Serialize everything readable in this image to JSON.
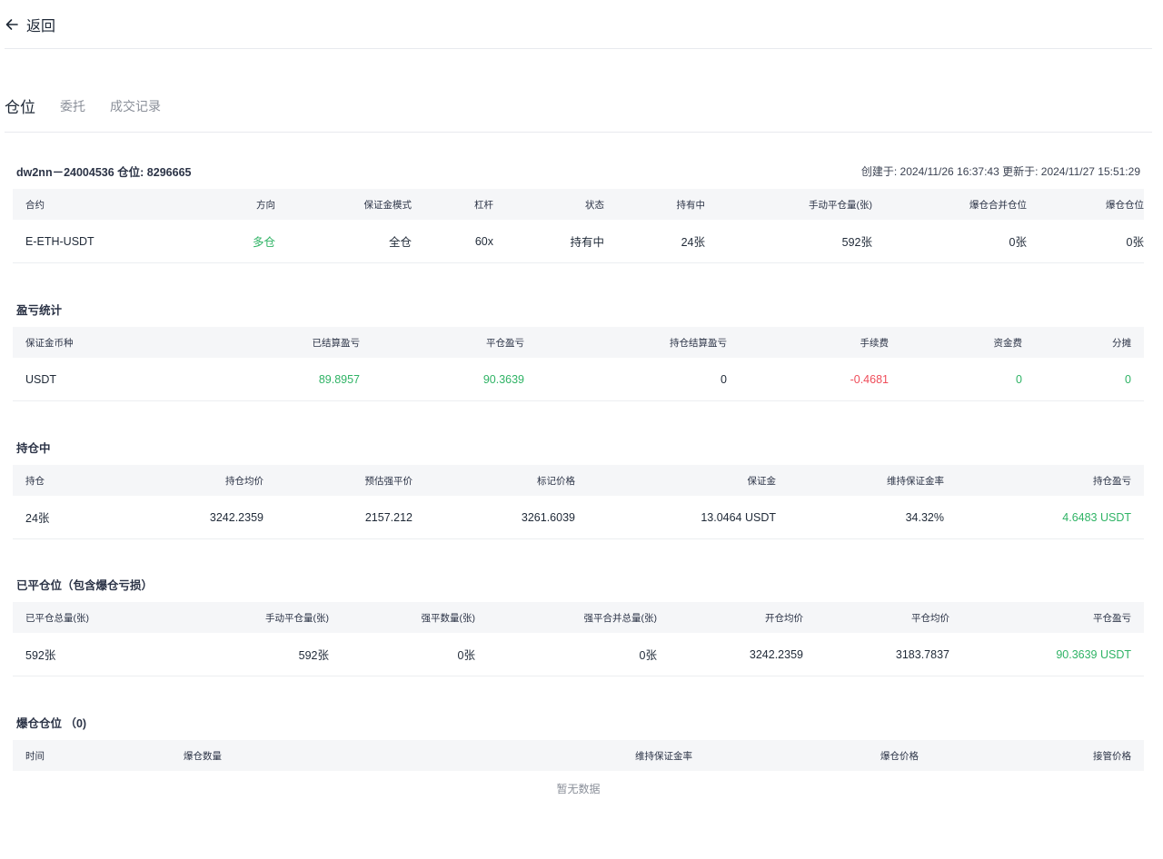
{
  "header": {
    "back_label": "返回"
  },
  "tabs": [
    "仓位",
    "委托",
    "成交记录"
  ],
  "position": {
    "title": "dw2nn－24004536 仓位: 8296665",
    "meta": "创建于: 2024/11/26 16:37:43 更新于: 2024/11/27 15:51:29",
    "columns": [
      "合约",
      "方向",
      "保证金模式",
      "杠杆",
      "状态",
      "持有中",
      "手动平仓量(张)",
      "爆仓合并仓位",
      "爆仓仓位"
    ],
    "row": [
      "E-ETH-USDT",
      "多仓",
      "全仓",
      "60x",
      "持有中",
      "24张",
      "592张",
      "0张",
      "0张"
    ]
  },
  "pnl": {
    "title": "盈亏统计",
    "columns": [
      "保证金币种",
      "已结算盈亏",
      "平仓盈亏",
      "持仓结算盈亏",
      "手续费",
      "资金费",
      "分摊"
    ],
    "row": [
      "USDT",
      "89.8957",
      "90.3639",
      "0",
      "-0.4681",
      "0",
      "0"
    ]
  },
  "holding": {
    "title": "持仓中",
    "columns": [
      "持仓",
      "持仓均价",
      "预估强平价",
      "标记价格",
      "保证金",
      "维持保证金率",
      "持仓盈亏"
    ],
    "row": [
      "24张",
      "3242.2359",
      "2157.212",
      "3261.6039",
      "13.0464 USDT",
      "34.32%",
      "4.6483 USDT"
    ]
  },
  "closed": {
    "title": "已平仓位（包含爆仓亏损）",
    "columns": [
      "已平仓总量(张)",
      "手动平仓量(张)",
      "强平数量(张)",
      "强平合并总量(张)",
      "开仓均价",
      "平仓均价",
      "平仓盈亏"
    ],
    "row": [
      "592张",
      "592张",
      "0张",
      "0张",
      "3242.2359",
      "3183.7837",
      "90.3639 USDT"
    ]
  },
  "liquidation": {
    "title": "爆仓仓位 （0)",
    "columns": [
      "时间",
      "爆仓数量",
      "维持保证金率",
      "爆仓价格",
      "接管价格"
    ],
    "empty": "暂无数据"
  },
  "colors": {
    "positive": "#2fb365",
    "negative": "#ef4d5a",
    "header_bg": "#f5f6f8"
  }
}
